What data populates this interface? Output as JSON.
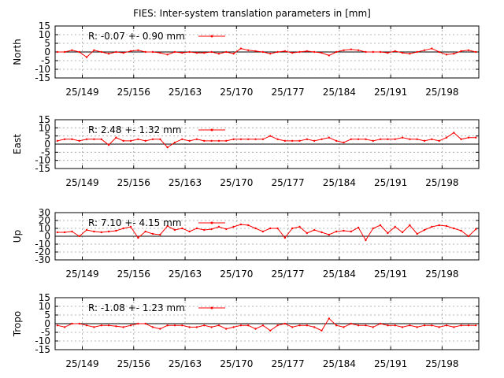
{
  "chart_data": [
    {
      "type": "line",
      "title": "FIES: Inter-system translation parameters in [mm]",
      "ylabel": "North",
      "xlim": [
        145.3,
        203.0
      ],
      "ylim": [
        -15,
        15
      ],
      "yticks": [
        15,
        10,
        5,
        0,
        -5,
        -10,
        -15
      ],
      "xticks": [
        149,
        156,
        163,
        170,
        177,
        184,
        191,
        198
      ],
      "xtick_labels": [
        "25/149",
        "25/156",
        "25/163",
        "25/170",
        "25/177",
        "25/184",
        "25/191",
        "25/198"
      ],
      "grid": true,
      "legend_position": "top-left",
      "series": [
        {
          "name": "R:  -0.07 +- 0.90 mm",
          "color": "#ff0000",
          "x": [
            145.6,
            146.6,
            147.6,
            148.6,
            149.6,
            150.6,
            151.6,
            152.6,
            153.6,
            154.6,
            155.6,
            156.6,
            157.6,
            158.6,
            159.6,
            160.6,
            161.6,
            162.6,
            163.6,
            164.6,
            165.6,
            166.6,
            167.6,
            168.6,
            169.6,
            170.6,
            171.6,
            172.6,
            173.6,
            174.6,
            175.6,
            176.6,
            177.6,
            178.6,
            179.6,
            180.6,
            181.6,
            182.6,
            183.6,
            184.6,
            185.6,
            186.6,
            187.6,
            188.6,
            189.6,
            190.6,
            191.6,
            192.6,
            193.6,
            194.6,
            195.6,
            196.6,
            197.6,
            198.6,
            199.6,
            200.6,
            201.6,
            202.6
          ],
          "y": [
            0,
            0,
            1,
            0,
            -3,
            1,
            0,
            -1,
            0,
            -0.5,
            0.5,
            1,
            0,
            0,
            -0.5,
            -1.5,
            0,
            -0.5,
            0,
            -0.5,
            -0.5,
            0,
            -1,
            0,
            -1,
            2,
            1,
            0.5,
            0,
            -1,
            0,
            0.5,
            -0.5,
            0,
            0.5,
            0,
            -0.5,
            -2,
            0,
            1,
            1.5,
            1,
            0,
            0,
            0,
            -0.5,
            0.5,
            -0.5,
            -1,
            0,
            1,
            2,
            0,
            -1.5,
            -1,
            0.5,
            1,
            0
          ]
        }
      ]
    },
    {
      "type": "line",
      "ylabel": "East",
      "xlim": [
        145.3,
        203.0
      ],
      "ylim": [
        -15,
        15
      ],
      "yticks": [
        15,
        10,
        5,
        0,
        -5,
        -10,
        -15
      ],
      "xticks": [
        149,
        156,
        163,
        170,
        177,
        184,
        191,
        198
      ],
      "xtick_labels": [
        "25/149",
        "25/156",
        "25/163",
        "25/170",
        "25/177",
        "25/184",
        "25/191",
        "25/198"
      ],
      "grid": true,
      "legend_position": "top-left",
      "series": [
        {
          "name": "R:   2.48 +- 1.32 mm",
          "color": "#ff0000",
          "x": [
            145.6,
            146.6,
            147.6,
            148.6,
            149.6,
            150.6,
            151.6,
            152.6,
            153.6,
            154.6,
            155.6,
            156.6,
            157.6,
            158.6,
            159.6,
            160.6,
            161.6,
            162.6,
            163.6,
            164.6,
            165.6,
            166.6,
            167.6,
            168.6,
            169.6,
            170.6,
            171.6,
            172.6,
            173.6,
            174.6,
            175.6,
            176.6,
            177.6,
            178.6,
            179.6,
            180.6,
            181.6,
            182.6,
            183.6,
            184.6,
            185.6,
            186.6,
            187.6,
            188.6,
            189.6,
            190.6,
            191.6,
            192.6,
            193.6,
            194.6,
            195.6,
            196.6,
            197.6,
            198.6,
            199.6,
            200.6,
            201.6,
            202.6
          ],
          "y": [
            2,
            3,
            3,
            2,
            3,
            3,
            3,
            -0.5,
            4,
            2,
            2,
            3,
            2,
            3,
            3,
            -2,
            1,
            3,
            2,
            3,
            2,
            2,
            2,
            2,
            3,
            3,
            3,
            3,
            3,
            5,
            3,
            2,
            2,
            2,
            3,
            2,
            3,
            4,
            2,
            1,
            3,
            3,
            3,
            2,
            3,
            3,
            3,
            4,
            3,
            3,
            2,
            3,
            2,
            4,
            7,
            3,
            4,
            4
          ]
        }
      ]
    },
    {
      "type": "line",
      "ylabel": "Up",
      "xlim": [
        145.3,
        203.0
      ],
      "ylim": [
        -30,
        30
      ],
      "yticks": [
        30,
        20,
        10,
        0,
        -10,
        -20,
        -30
      ],
      "xticks": [
        149,
        156,
        163,
        170,
        177,
        184,
        191,
        198
      ],
      "xtick_labels": [
        "25/149",
        "25/156",
        "25/163",
        "25/170",
        "25/177",
        "25/184",
        "25/191",
        "25/198"
      ],
      "grid": true,
      "legend_position": "top-left",
      "series": [
        {
          "name": "R:   7.10 +- 4.15 mm",
          "color": "#ff0000",
          "x": [
            145.6,
            146.6,
            147.6,
            148.6,
            149.6,
            150.6,
            151.6,
            152.6,
            153.6,
            154.6,
            155.6,
            156.6,
            157.6,
            158.6,
            159.6,
            160.6,
            161.6,
            162.6,
            163.6,
            164.6,
            165.6,
            166.6,
            167.6,
            168.6,
            169.6,
            170.6,
            171.6,
            172.6,
            173.6,
            174.6,
            175.6,
            176.6,
            177.6,
            178.6,
            179.6,
            180.6,
            181.6,
            182.6,
            183.6,
            184.6,
            185.6,
            186.6,
            187.6,
            188.6,
            189.6,
            190.6,
            191.6,
            192.6,
            193.6,
            194.6,
            195.6,
            196.6,
            197.6,
            198.6,
            199.6,
            200.6,
            201.6,
            202.6
          ],
          "y": [
            5,
            5,
            6,
            0,
            8,
            6,
            5,
            6,
            7,
            10,
            12,
            -2,
            6,
            3,
            2,
            13,
            8,
            10,
            6,
            10,
            8,
            9,
            12,
            9,
            12,
            15,
            14,
            10,
            6,
            10,
            10,
            -2,
            10,
            12,
            4,
            8,
            5,
            2,
            6,
            7,
            6,
            11,
            -5,
            10,
            14,
            4,
            12,
            5,
            14,
            3,
            8,
            12,
            14,
            13,
            10,
            7,
            0,
            9
          ]
        }
      ]
    },
    {
      "type": "line",
      "ylabel": "Tropo",
      "xlim": [
        145.3,
        203.0
      ],
      "ylim": [
        -15,
        15
      ],
      "yticks": [
        15,
        10,
        5,
        0,
        -5,
        -10,
        -15
      ],
      "xticks": [
        149,
        156,
        163,
        170,
        177,
        184,
        191,
        198
      ],
      "xtick_labels": [
        "25/149",
        "25/156",
        "25/163",
        "25/170",
        "25/177",
        "25/184",
        "25/191",
        "25/198"
      ],
      "grid": true,
      "legend_position": "top-left",
      "series": [
        {
          "name": "R:  -1.08 +- 1.23 mm",
          "color": "#ff0000",
          "x": [
            145.6,
            146.6,
            147.6,
            148.6,
            149.6,
            150.6,
            151.6,
            152.6,
            153.6,
            154.6,
            155.6,
            156.6,
            157.6,
            158.6,
            159.6,
            160.6,
            161.6,
            162.6,
            163.6,
            164.6,
            165.6,
            166.6,
            167.6,
            168.6,
            169.6,
            170.6,
            171.6,
            172.6,
            173.6,
            174.6,
            175.6,
            176.6,
            177.6,
            178.6,
            179.6,
            180.6,
            181.6,
            182.6,
            183.6,
            184.6,
            185.6,
            186.6,
            187.6,
            188.6,
            189.6,
            190.6,
            191.6,
            192.6,
            193.6,
            194.6,
            195.6,
            196.6,
            197.6,
            198.6,
            199.6,
            200.6,
            201.6,
            202.6
          ],
          "y": [
            -1,
            -2,
            0,
            0,
            -1,
            -2,
            -1,
            -1,
            -1.5,
            -2,
            -1,
            0,
            0,
            -2,
            -3,
            -1,
            -1,
            -1,
            -2,
            -2,
            -1,
            -2,
            -1,
            -3,
            -2,
            -1,
            -1,
            -3,
            -1,
            -4,
            -1,
            0,
            -2,
            -1,
            -1,
            -2,
            -4,
            3,
            -1,
            -2,
            0,
            -1,
            -1,
            -2,
            0,
            -1,
            -1,
            -2,
            -1,
            -2,
            -1,
            -1,
            -2,
            -1,
            -2,
            -1,
            -1,
            -1
          ]
        }
      ]
    }
  ]
}
